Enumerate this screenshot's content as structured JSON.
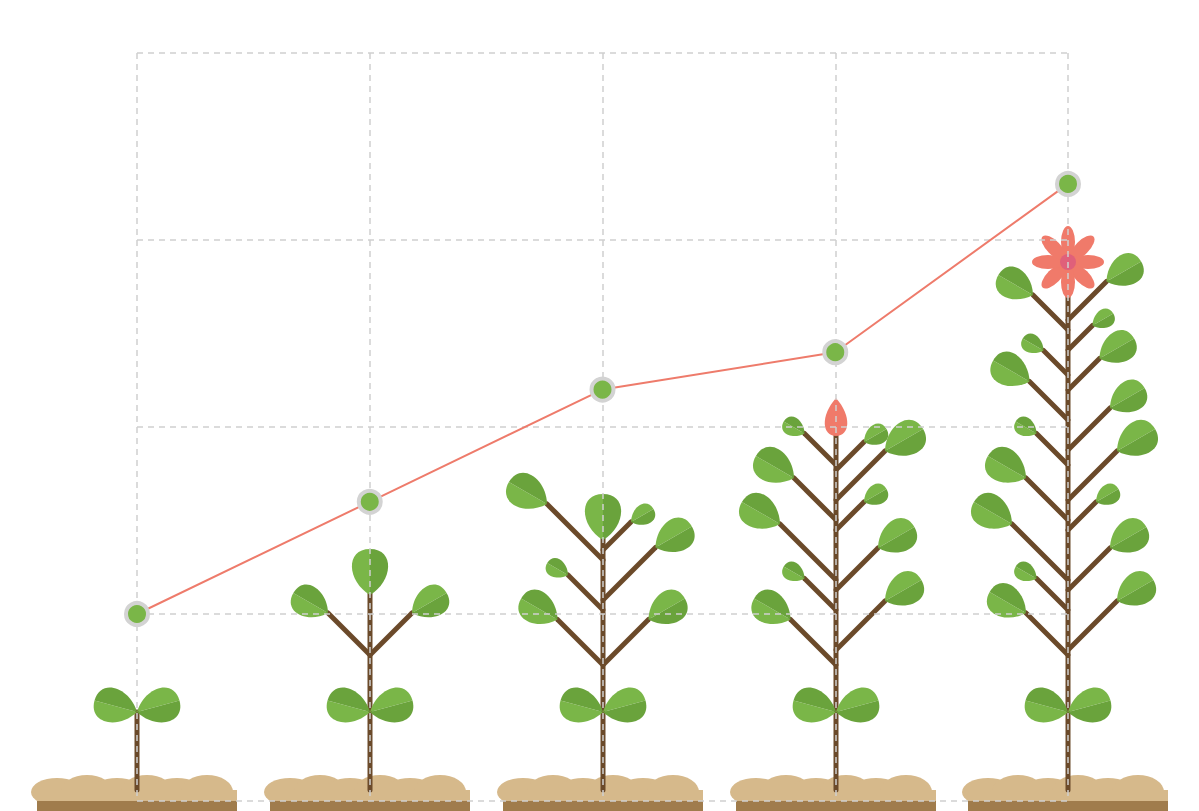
{
  "chart_data": {
    "type": "line",
    "categories": [
      null,
      null,
      null,
      null,
      null
    ],
    "values": [
      1.0,
      1.6,
      2.2,
      2.4,
      3.3
    ],
    "color": "#ee7b6b",
    "marker": "circle",
    "ylim": [
      0,
      4
    ],
    "yticks": [
      0,
      1,
      2,
      3,
      4
    ],
    "grid": true,
    "tick_labels": false
  }
}
